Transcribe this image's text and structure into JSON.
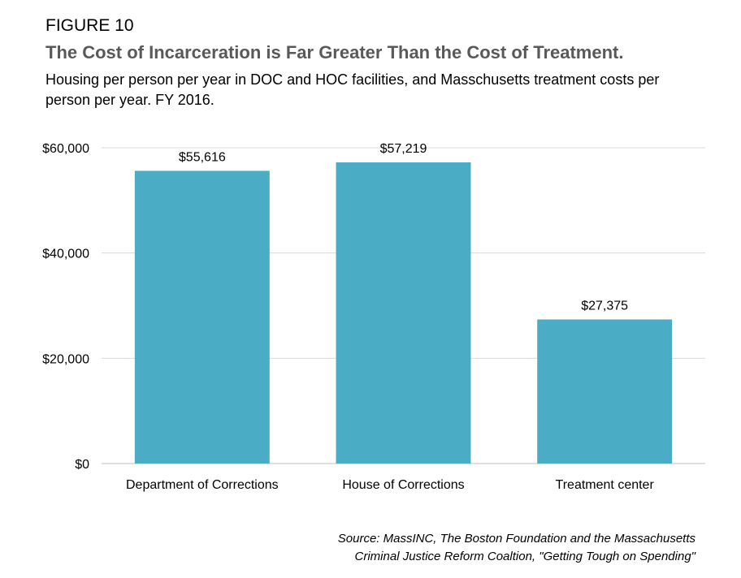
{
  "figure_label": "FIGURE 10",
  "chart_data": {
    "type": "bar",
    "title": "The Cost of Incarceration is Far Greater Than the Cost of Treatment.",
    "subtitle": "Housing per person per year in DOC and HOC facilities, and Masschusetts treatment costs per person per year. FY 2016.",
    "categories": [
      "Department of Corrections",
      "House of Corrections",
      "Treatment center"
    ],
    "values": [
      55616,
      57219,
      27375
    ],
    "data_labels": [
      "$55,616",
      "$57,219",
      "$27,375"
    ],
    "ylim": [
      0,
      60000
    ],
    "yticks": [
      0,
      20000,
      40000,
      60000
    ],
    "ytick_labels": [
      "$0",
      "$20,000",
      "$40,000",
      "$60,000"
    ],
    "grid": true,
    "bar_color": "#4BACC6",
    "xlabel": "",
    "ylabel": ""
  },
  "source": {
    "line1": "Source: MassINC, The Boston Foundation and the Massachusetts",
    "line2": "Criminal Justice Reform Coaltion, \"Getting Tough on Spending\""
  }
}
